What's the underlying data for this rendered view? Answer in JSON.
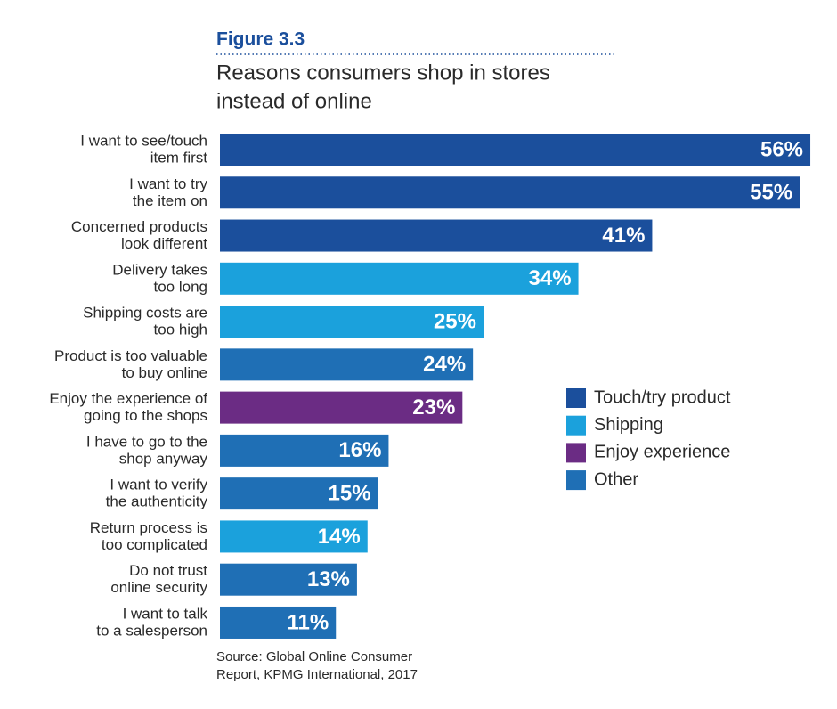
{
  "chart_data": {
    "type": "bar",
    "orientation": "horizontal",
    "title": "Figure 3.3",
    "subtitle": [
      "Reasons consumers shop in stores",
      "instead of online"
    ],
    "categories": [
      [
        "I want to see/touch",
        "item first"
      ],
      [
        "I want to try",
        "the item on"
      ],
      [
        "Concerned products",
        "look different"
      ],
      [
        "Delivery takes",
        "too long"
      ],
      [
        "Shipping costs are",
        "too high"
      ],
      [
        "Product is too valuable",
        "to buy online"
      ],
      [
        "Enjoy the experience of",
        "going to the shops"
      ],
      [
        "I have to go to the",
        "shop anyway"
      ],
      [
        "I want to verify",
        "the authenticity"
      ],
      [
        "Return process is",
        "too complicated"
      ],
      [
        "Do not trust",
        "online security"
      ],
      [
        "I want to talk",
        "to a salesperson"
      ]
    ],
    "series": [
      {
        "name": "Touch/try product",
        "color": "#1b4f9c",
        "values": [
          56,
          55,
          41,
          null,
          null,
          null,
          null,
          null,
          null,
          null,
          null,
          null
        ],
        "value_labels": [
          "56%",
          "55%",
          "41%",
          null,
          null,
          null,
          null,
          null,
          null,
          null,
          null,
          null
        ]
      },
      {
        "name": "Shipping",
        "color": "#1ba1dc",
        "values": [
          null,
          null,
          null,
          34,
          25,
          null,
          null,
          null,
          null,
          14,
          null,
          null
        ],
        "value_labels": [
          null,
          null,
          null,
          "34%",
          "25%",
          null,
          null,
          null,
          null,
          "14%",
          null,
          null
        ]
      },
      {
        "name": "Enjoy experience",
        "color": "#6b2c84",
        "values": [
          null,
          null,
          null,
          null,
          null,
          null,
          23,
          null,
          null,
          null,
          null,
          null
        ],
        "value_labels": [
          null,
          null,
          null,
          null,
          null,
          null,
          "23%",
          null,
          null,
          null,
          null,
          null
        ]
      },
      {
        "name": "Other",
        "color": "#1f6fb5",
        "values": [
          null,
          null,
          null,
          null,
          null,
          24,
          null,
          16,
          15,
          null,
          13,
          11
        ],
        "value_labels": [
          null,
          null,
          null,
          null,
          null,
          "24%",
          null,
          "16%",
          "15%",
          null,
          "13%",
          "11%"
        ]
      }
    ],
    "legend": "right",
    "source": [
      "Source: Global Online Consumer",
      "Report, KPMG International, 2017"
    ]
  }
}
